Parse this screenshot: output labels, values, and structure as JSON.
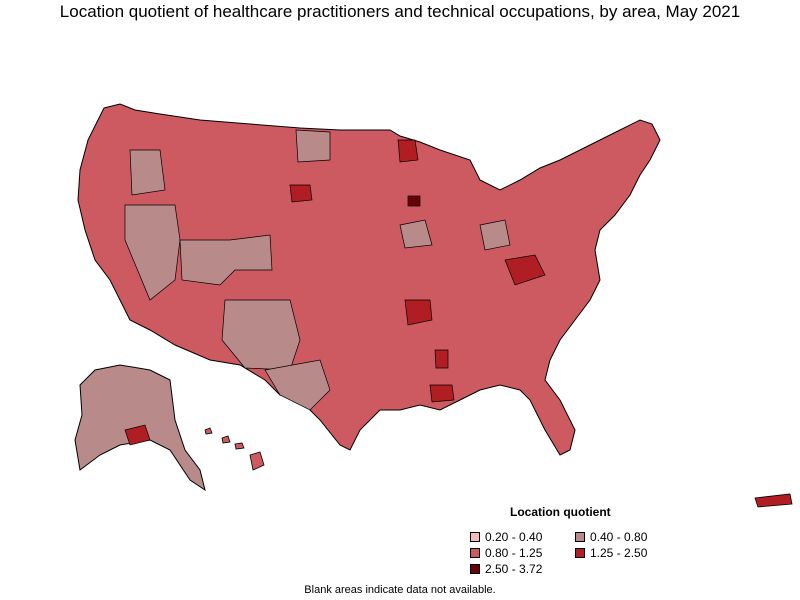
{
  "title": "Location quotient of healthcare practitioners and technical occupations, by area, May 2021",
  "legend": {
    "title": "Location quotient",
    "items": [
      {
        "label": "0.20 - 0.40",
        "color": "#f2b8be"
      },
      {
        "label": "0.40 - 0.80",
        "color": "#b88a8a"
      },
      {
        "label": "0.80 - 1.25",
        "color": "#cc5a60"
      },
      {
        "label": "1.25 - 2.50",
        "color": "#b01e24"
      },
      {
        "label": "2.50 - 3.72",
        "color": "#6a0008"
      }
    ]
  },
  "footnote": "Blank areas indicate data not available.",
  "colors": {
    "low": "#f2b8be",
    "lowmid": "#b88a8a",
    "mid": "#cc5a60",
    "high": "#b01e24",
    "top": "#6a0008",
    "border": "#000000"
  }
}
